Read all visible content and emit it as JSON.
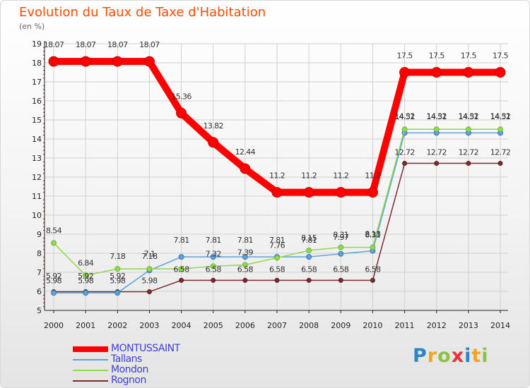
{
  "chart_data": {
    "type": "line",
    "title": "Evolution du Taux de Taxe d'Habitation",
    "ylabel": "(en %)",
    "x": [
      2000,
      2001,
      2002,
      2003,
      2004,
      2005,
      2006,
      2007,
      2008,
      2009,
      2010,
      2011,
      2012,
      2013,
      2014
    ],
    "ylim": [
      5,
      19
    ],
    "yticks": [
      5,
      6,
      7,
      8,
      9,
      10,
      11,
      12,
      13,
      14,
      15,
      16,
      17,
      18,
      19
    ],
    "grid": true,
    "legend_position": "bottom-left",
    "series": [
      {
        "name": "MONTUSSAINT",
        "color": "#ff0000",
        "values": [
          18.07,
          18.07,
          18.07,
          18.07,
          15.36,
          13.82,
          12.44,
          11.2,
          11.2,
          11.2,
          11.2,
          17.5,
          17.5,
          17.5,
          17.5
        ],
        "labels": [
          "18.07",
          "18.07",
          "18.07",
          "18.07",
          "15.36",
          "13.82",
          "12.44",
          "11.2",
          "11.2",
          "11.2",
          "11.2",
          "17.5",
          "17.5",
          "17.5",
          "17.5"
        ]
      },
      {
        "name": "Tallans",
        "color": "#5fa0d8",
        "values": [
          5.92,
          5.92,
          5.92,
          7.1,
          7.81,
          7.81,
          7.81,
          7.81,
          7.81,
          7.97,
          8.13,
          14.32,
          14.32,
          14.32,
          14.32
        ],
        "labels": [
          "5.92",
          "5.92",
          "5.92",
          "7.1",
          "7.81",
          "7.81",
          "7.81",
          "7.81",
          "7.81",
          "7.97",
          "8.13",
          "14.32",
          "14.32",
          "14.32",
          "14.32"
        ]
      },
      {
        "name": "Mondon",
        "color": "#8fd850",
        "values": [
          8.54,
          6.84,
          7.18,
          7.18,
          7.18,
          7.32,
          7.39,
          7.76,
          8.15,
          8.31,
          8.31,
          14.51,
          14.51,
          14.51,
          14.51
        ],
        "labels": [
          "8.54",
          "6.84",
          "7.18",
          "7.18",
          "",
          "7.32",
          "7.39",
          "7.76",
          "8.15",
          "8.31",
          "8.31",
          "14.51",
          "14.51",
          "14.51",
          "14.51"
        ]
      },
      {
        "name": "Rognon",
        "color": "#7b2d2d",
        "values": [
          5.98,
          5.98,
          5.98,
          5.98,
          6.58,
          6.58,
          6.58,
          6.58,
          6.58,
          6.58,
          6.58,
          12.72,
          12.72,
          12.72,
          12.72
        ],
        "labels": [
          "5.98",
          "5.98",
          "5.98",
          "5.98",
          "6.58",
          "6.58",
          "6.58",
          "6.58",
          "6.58",
          "6.58",
          "6.58",
          "12.72",
          "12.72",
          "12.72",
          "12.72"
        ]
      }
    ]
  },
  "colors": {
    "title": "#ff4c00",
    "axis": "#222222",
    "grid": "#d0d0d0",
    "tick_mark": "#cc0000",
    "legend_text": "#4040d0"
  },
  "logo": {
    "p": "P",
    "r": "r",
    "o": "o",
    "x": "x",
    "i": "i",
    "t": "t",
    "i2": "i"
  }
}
